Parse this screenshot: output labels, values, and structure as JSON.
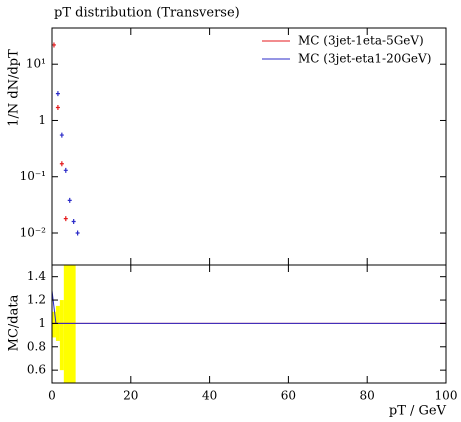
{
  "chart_data": [
    {
      "type": "scatter",
      "title": "pT distribution (Transverse)",
      "y_label": "1/N dN/dpT",
      "log_y": true,
      "xlim": [
        0,
        100
      ],
      "xticks": [
        0,
        20,
        40,
        60,
        80,
        100
      ],
      "ylim": [
        0.0027,
        44
      ],
      "yticks": [
        {
          "value": 10,
          "label": "10¹"
        },
        {
          "value": 1,
          "label": "1"
        },
        {
          "value": 0.1,
          "label": "10⁻¹"
        },
        {
          "value": 0.01,
          "label": "10⁻²"
        }
      ],
      "legend": "upper right",
      "series": [
        {
          "name": "MC (3jet-1eta-5GeV)",
          "color": "#e41a1c",
          "x": [
            0.5,
            1.5,
            2.5,
            3.5
          ],
          "values": [
            22,
            1.7,
            0.17,
            0.018
          ]
        },
        {
          "name": "MC (3jet-eta1-20GeV)",
          "color": "#2b2bc8",
          "x": [
            1.5,
            2.5,
            3.5,
            4.5,
            5.5,
            6.5
          ],
          "values": [
            3,
            0.55,
            0.13,
            0.038,
            0.016,
            0.01
          ]
        }
      ]
    },
    {
      "type": "line",
      "x_label": "pT / GeV",
      "y_label": "MC/data",
      "xlim": [
        0,
        100
      ],
      "xticks": [
        0,
        20,
        40,
        60,
        80,
        100
      ],
      "ylim": [
        0.49,
        1.5
      ],
      "yticks": [
        0.6,
        0.8,
        1,
        1.2,
        1.4
      ],
      "band": {
        "color": "#ffff00",
        "edges": [
          0,
          1,
          2,
          3,
          6
        ],
        "lower": [
          0.88,
          0.85,
          0.6,
          0.49
        ],
        "upper": [
          1.1,
          1.15,
          1.2,
          1.5
        ]
      },
      "series": [
        {
          "color": "#e41a1c",
          "x": [
            0,
            100
          ],
          "values": [
            1,
            1
          ]
        },
        {
          "color": "#2b2bc8",
          "x": [
            0,
            1,
            100
          ],
          "values": [
            1.28,
            1,
            1
          ]
        }
      ]
    }
  ]
}
